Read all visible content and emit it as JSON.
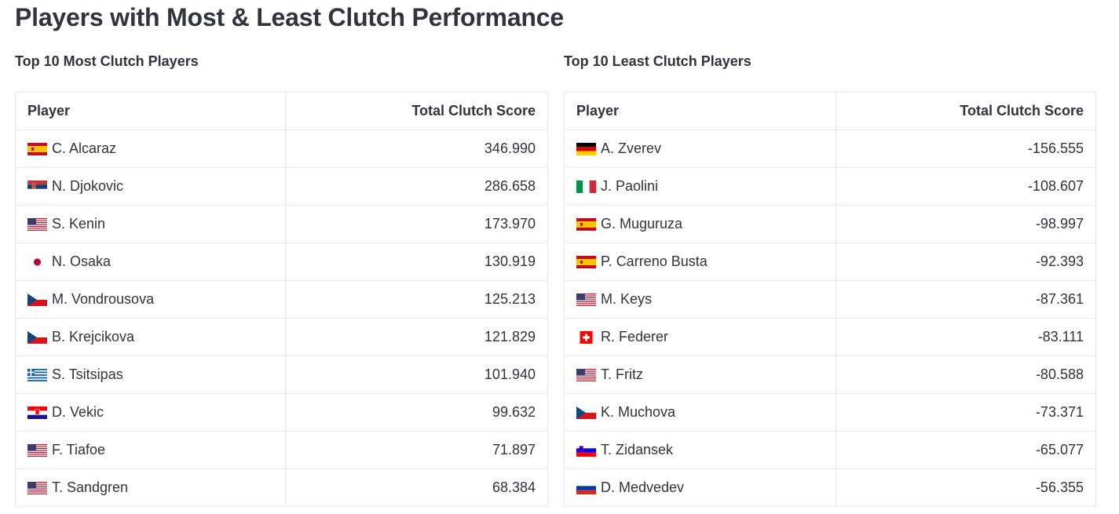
{
  "page_title": "Players with Most & Least Clutch Performance",
  "most": {
    "title": "Top 10 Most Clutch Players",
    "columns": [
      "Player",
      "Total Clutch Score"
    ],
    "rows": [
      {
        "flag": "spain-flag-icon",
        "name": "C. Alcaraz",
        "score": "346.990"
      },
      {
        "flag": "serbia-flag-icon",
        "name": "N. Djokovic",
        "score": "286.658"
      },
      {
        "flag": "usa-flag-icon",
        "name": "S. Kenin",
        "score": "173.970"
      },
      {
        "flag": "japan-flag-icon",
        "name": "N. Osaka",
        "score": "130.919"
      },
      {
        "flag": "czech-flag-icon",
        "name": "M. Vondrousova",
        "score": "125.213"
      },
      {
        "flag": "czech-flag-icon",
        "name": "B. Krejcikova",
        "score": "121.829"
      },
      {
        "flag": "greece-flag-icon",
        "name": "S. Tsitsipas",
        "score": "101.940"
      },
      {
        "flag": "croatia-flag-icon",
        "name": "D. Vekic",
        "score": "99.632"
      },
      {
        "flag": "usa-flag-icon",
        "name": "F. Tiafoe",
        "score": "71.897"
      },
      {
        "flag": "usa-flag-icon",
        "name": "T. Sandgren",
        "score": "68.384"
      }
    ]
  },
  "least": {
    "title": "Top 10 Least Clutch Players",
    "columns": [
      "Player",
      "Total Clutch Score"
    ],
    "rows": [
      {
        "flag": "germany-flag-icon",
        "name": "A. Zverev",
        "score": "-156.555"
      },
      {
        "flag": "italy-flag-icon",
        "name": "J. Paolini",
        "score": "-108.607"
      },
      {
        "flag": "spain-flag-icon",
        "name": "G. Muguruza",
        "score": "-98.997"
      },
      {
        "flag": "spain-flag-icon",
        "name": "P. Carreno Busta",
        "score": "-92.393"
      },
      {
        "flag": "usa-flag-icon",
        "name": "M. Keys",
        "score": "-87.361"
      },
      {
        "flag": "switzerland-flag-icon",
        "name": "R. Federer",
        "score": "-83.111"
      },
      {
        "flag": "usa-flag-icon",
        "name": "T. Fritz",
        "score": "-80.588"
      },
      {
        "flag": "czech-flag-icon",
        "name": "K. Muchova",
        "score": "-73.371"
      },
      {
        "flag": "slovenia-flag-icon",
        "name": "T. Zidansek",
        "score": "-65.077"
      },
      {
        "flag": "russia-flag-icon",
        "name": "D. Medvedev",
        "score": "-56.355"
      }
    ]
  }
}
